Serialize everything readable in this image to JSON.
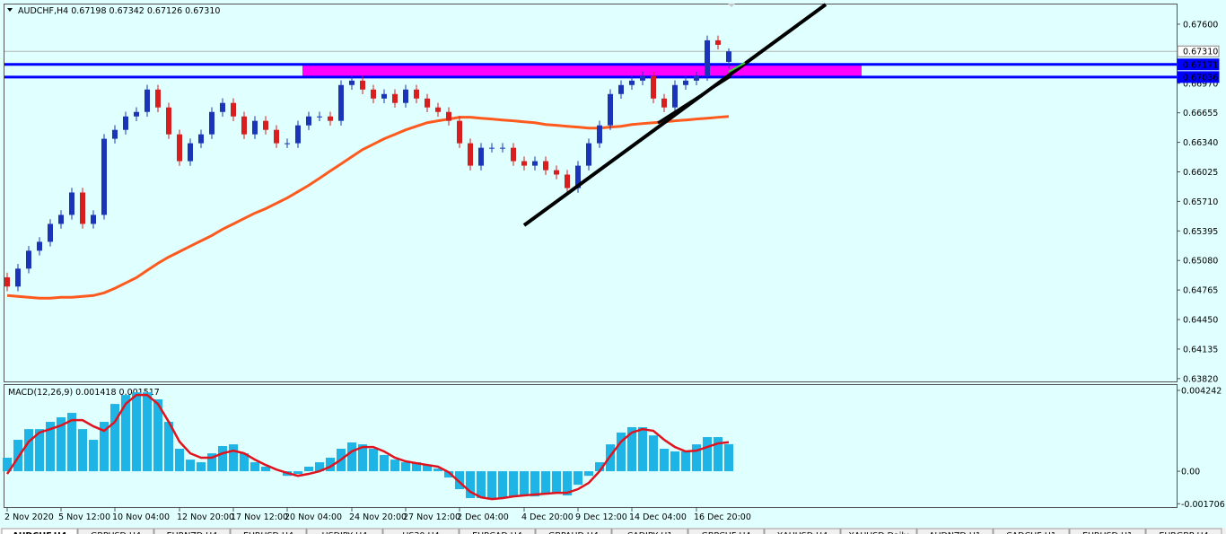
{
  "chart_data": [
    {
      "type": "candlestick",
      "title": "AUDCHF,H4  0.67198 0.67342 0.67126 0.67310",
      "categories": [
        "2 Nov 2020",
        null,
        null,
        null,
        null,
        "5 Nov 12:00",
        null,
        null,
        null,
        null,
        "10 Nov 04:00",
        null,
        null,
        null,
        null,
        null,
        "12 Nov 20:00",
        null,
        null,
        null,
        null,
        "17 Nov 12:00",
        null,
        null,
        null,
        null,
        "20 Nov 04:00",
        null,
        null,
        null,
        null,
        null,
        "24 Nov 20:00",
        null,
        null,
        null,
        null,
        "27 Nov 12:00",
        null,
        null,
        null,
        null,
        "2 Dec 04:00",
        null,
        null,
        null,
        null,
        null,
        "4 Dec 20:00",
        null,
        null,
        null,
        null,
        "9 Dec 12:00",
        null,
        null,
        null,
        null,
        "14 Dec 04:00",
        null,
        null,
        null,
        null,
        null,
        "16 Dec 20:00",
        null,
        null,
        null
      ],
      "open": [
        0.649,
        0.64802,
        0.64993,
        0.65184,
        0.65279,
        0.6547,
        0.65566,
        0.65805,
        0.6547,
        0.65566,
        0.66378,
        0.66473,
        0.66616,
        0.66664,
        0.66903,
        0.66712,
        0.66425,
        0.66139,
        0.6633,
        0.66425,
        0.66664,
        0.6676,
        0.66616,
        0.66425,
        0.66569,
        0.66473,
        0.6633,
        0.6633,
        0.66521,
        0.66616,
        0.66616,
        0.66569,
        0.66951,
        0.66998,
        0.66903,
        0.66807,
        0.66855,
        0.6676,
        0.66903,
        0.66807,
        0.66712,
        0.66664,
        0.66569,
        0.6633,
        0.66091,
        0.66282,
        0.66282,
        0.66282,
        0.66139,
        0.66091,
        0.66139,
        0.66043,
        0.65996,
        0.65852,
        0.66091,
        0.6633,
        0.66521,
        0.66855,
        0.66951,
        0.66998,
        0.67046,
        0.66807,
        0.66712,
        0.66951,
        0.66998,
        0.67046,
        0.67428,
        0.67198
      ],
      "high": [
        0.6495,
        0.65043,
        0.65234,
        0.65329,
        0.6552,
        0.65616,
        0.65855,
        0.65855,
        0.65616,
        0.66428,
        0.66523,
        0.66666,
        0.66714,
        0.66953,
        0.66953,
        0.66762,
        0.66475,
        0.6638,
        0.66475,
        0.66714,
        0.6681,
        0.6681,
        0.66666,
        0.66619,
        0.66619,
        0.66523,
        0.6638,
        0.66571,
        0.66666,
        0.66666,
        0.66666,
        0.67001,
        0.67048,
        0.67048,
        0.66953,
        0.66905,
        0.66905,
        0.66953,
        0.66953,
        0.66857,
        0.66762,
        0.66714,
        0.66619,
        0.6638,
        0.66332,
        0.66332,
        0.66332,
        0.66332,
        0.66189,
        0.66189,
        0.66189,
        0.66093,
        0.66046,
        0.66141,
        0.6638,
        0.66571,
        0.66905,
        0.67001,
        0.67048,
        0.67096,
        0.67096,
        0.66857,
        0.67001,
        0.67048,
        0.67096,
        0.67478,
        0.67478,
        0.67342
      ],
      "low": [
        0.64752,
        0.64752,
        0.64943,
        0.65134,
        0.65229,
        0.6542,
        0.65516,
        0.6542,
        0.6542,
        0.65516,
        0.66328,
        0.66423,
        0.66566,
        0.66614,
        0.66662,
        0.66375,
        0.66089,
        0.66089,
        0.6628,
        0.66375,
        0.66614,
        0.66566,
        0.66375,
        0.66375,
        0.66423,
        0.6628,
        0.6628,
        0.6628,
        0.66471,
        0.66566,
        0.66519,
        0.66519,
        0.66901,
        0.66853,
        0.66757,
        0.66757,
        0.6671,
        0.6671,
        0.66757,
        0.66662,
        0.66614,
        0.66519,
        0.6628,
        0.66041,
        0.66041,
        0.66232,
        0.66232,
        0.66089,
        0.66041,
        0.66041,
        0.65993,
        0.65946,
        0.65802,
        0.65802,
        0.66041,
        0.6628,
        0.66471,
        0.66805,
        0.66901,
        0.66948,
        0.66757,
        0.66662,
        0.66662,
        0.66901,
        0.66948,
        0.66996,
        0.6733,
        0.67126
      ],
      "close": [
        0.64802,
        0.64993,
        0.65184,
        0.65279,
        0.6547,
        0.65566,
        0.65805,
        0.6547,
        0.65566,
        0.66378,
        0.66473,
        0.66616,
        0.66664,
        0.66903,
        0.66712,
        0.66425,
        0.66139,
        0.6633,
        0.66425,
        0.66664,
        0.6676,
        0.66616,
        0.66425,
        0.66569,
        0.66473,
        0.6633,
        0.6633,
        0.66521,
        0.66616,
        0.66616,
        0.66569,
        0.66951,
        0.66998,
        0.66903,
        0.66807,
        0.66855,
        0.6676,
        0.66903,
        0.66807,
        0.66712,
        0.66664,
        0.66569,
        0.6633,
        0.66091,
        0.66282,
        0.66282,
        0.66282,
        0.66139,
        0.66091,
        0.66139,
        0.66043,
        0.65996,
        0.65852,
        0.66091,
        0.6633,
        0.66521,
        0.66855,
        0.66951,
        0.66998,
        0.67046,
        0.66807,
        0.66712,
        0.66951,
        0.66998,
        0.67046,
        0.67428,
        0.6738,
        0.6731
      ],
      "up_color": "#1a35b8",
      "down_color": "#d81e1e",
      "overlays": [
        {
          "type": "line",
          "color": "#ff5a1e",
          "values": [
            0.64706,
            0.64697,
            0.64687,
            0.64678,
            0.64678,
            0.64687,
            0.64687,
            0.64697,
            0.64706,
            0.64735,
            0.64783,
            0.6484,
            0.64897,
            0.64974,
            0.6505,
            0.65117,
            0.65174,
            0.65232,
            0.65289,
            0.65346,
            0.65413,
            0.6547,
            0.65528,
            0.65585,
            0.65633,
            0.6569,
            0.65747,
            0.65814,
            0.65881,
            0.65957,
            0.66034,
            0.6611,
            0.66187,
            0.66263,
            0.6632,
            0.66378,
            0.66425,
            0.66473,
            0.66511,
            0.66549,
            0.66569,
            0.66588,
            0.66607,
            0.66607,
            0.66597,
            0.66588,
            0.66578,
            0.66569,
            0.66559,
            0.66549,
            0.6653,
            0.66521,
            0.66511,
            0.66502,
            0.66492,
            0.66492,
            0.66502,
            0.66511,
            0.6653,
            0.6654,
            0.66549,
            0.66559,
            0.66569,
            0.66578,
            0.66588,
            0.66597,
            0.66607,
            0.66616
          ]
        }
      ],
      "levels": [
        {
          "value": 0.67171,
          "color": "#0000ff"
        },
        {
          "value": 0.67036,
          "color": "#0000ff"
        },
        {
          "value": 0.6731,
          "label": "0.67310",
          "color": "#b4b4b4"
        }
      ],
      "zone_color": "#ff00ff",
      "ylim": [
        0.6379,
        0.6781
      ],
      "yticks": [
        {
          "value": 0.676,
          "label": "0.67600"
        },
        {
          "value": 0.6697,
          "label": "0.66970"
        },
        0.66655,
        {
          "value": 0.6634,
          "label": "0.66340"
        },
        0.66025,
        {
          "value": 0.6571,
          "label": "0.65710"
        },
        0.65395,
        {
          "value": 0.6508,
          "label": "0.65080"
        },
        0.64765,
        {
          "value": 0.6445,
          "label": "0.64450"
        },
        0.64135,
        {
          "value": 0.6382,
          "label": "0.63820"
        }
      ]
    },
    {
      "type": "macd",
      "title": "MACD(12,26,9) 0.001418 0.001517",
      "series": [
        {
          "type": "bar",
          "color": "#1eb4e6",
          "values": [
            0.00071,
            0.00165,
            0.00221,
            0.00221,
            0.00259,
            0.00283,
            0.00306,
            0.00221,
            0.00165,
            0.00259,
            0.00353,
            0.004,
            0.00414,
            0.00414,
            0.00377,
            0.00259,
            0.00118,
            0.00061,
            0.00047,
            0.00094,
            0.00132,
            0.00141,
            0.00094,
            0.00047,
            0.00024,
            0,
            -0.00024,
            -0.00014,
            0.00024,
            0.00047,
            0.00071,
            0.00118,
            0.00151,
            0.00141,
            0.00118,
            0.00085,
            0.00061,
            0.00047,
            0.00047,
            0.00033,
            0.00014,
            -0.00033,
            -0.00094,
            -0.00141,
            -0.00141,
            -0.00141,
            -0.00141,
            -0.00132,
            -0.00127,
            -0.00132,
            -0.00118,
            -0.00118,
            -0.00127,
            -0.00071,
            -0.00024,
            0.00047,
            0.00141,
            0.00203,
            0.00231,
            0.00231,
            0.00188,
            0.00118,
            0.00104,
            0.00104,
            0.00141,
            0.00179,
            0.00179,
            0.00142
          ]
        },
        {
          "type": "line",
          "color": "#e0141e",
          "values": [
            -0.00014,
            0.00071,
            0.00155,
            0.00203,
            0.00221,
            0.0024,
            0.00268,
            0.00268,
            0.00236,
            0.00212,
            0.00259,
            0.00353,
            0.004,
            0.004,
            0.00353,
            0.00259,
            0.00155,
            0.00094,
            0.00071,
            0.00071,
            0.00094,
            0.00108,
            0.00094,
            0.00061,
            0.00033,
            9e-05,
            -9e-05,
            -0.00024,
            -0.00014,
            0,
            0.00024,
            0.00061,
            0.00104,
            0.00127,
            0.00127,
            0.00104,
            0.00071,
            0.00052,
            0.00042,
            0.00033,
            0.00024,
            -5e-05,
            -0.00057,
            -0.00108,
            -0.00137,
            -0.00146,
            -0.00141,
            -0.00132,
            -0.00127,
            -0.00122,
            -0.00118,
            -0.00113,
            -0.00113,
            -0.00094,
            -0.00061,
            0,
            0.0008,
            0.00155,
            0.00203,
            0.00221,
            0.00212,
            0.00165,
            0.00127,
            0.00104,
            0.00108,
            0.00127,
            0.00146,
            0.00152
          ]
        }
      ],
      "ylim": [
        -0.00188,
        0.00457
      ],
      "yticks": [
        0.004242,
        {
          "value": 0,
          "label": "0.00"
        },
        -0.001706
      ]
    }
  ],
  "tabs": [
    "AUDCHF,H4",
    "GBPUSD,H4",
    "EURNZD,H4",
    "EURUSD,H4",
    "USDJPY,H4",
    "US30,H4",
    "EURCAD,H4",
    "GBPAUD,H4",
    "CADJPY,H1",
    "GBPCHF,H4",
    "XAUUSD,H4",
    "XAUUSD,Daily",
    "AUDNZD,H1",
    "CADCHF,H1",
    "EURUSD,H1",
    "EURGBP,H4"
  ]
}
